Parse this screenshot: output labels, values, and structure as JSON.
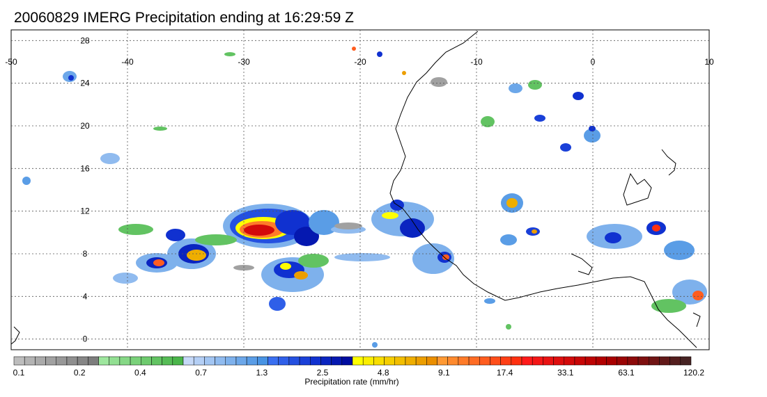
{
  "title": "20060829 IMERG Precipitation ending at 16:29:59 Z",
  "map": {
    "lon_range": [
      -50,
      10
    ],
    "lat_range": [
      -1,
      29
    ],
    "lon_labels": [
      "-50",
      "-40",
      "-30",
      "-20",
      "-10",
      "0",
      "10"
    ],
    "lat_labels": [
      "28",
      "24",
      "20",
      "16",
      "12",
      "8",
      "4",
      "0"
    ],
    "grid": true,
    "region": "Tropical Atlantic and West Africa"
  },
  "colorbar": {
    "label": "Precipitation rate (mm/hr)",
    "tick_labels": [
      "0.1",
      "0.2",
      "0.4",
      "0.7",
      "1.3",
      "2.5",
      "4.8",
      "9.1",
      "17.4",
      "33.1",
      "63.1",
      "120.2"
    ],
    "colors": [
      "#bdbdbd",
      "#b3b3b3",
      "#aaaaaa",
      "#a1a1a1",
      "#989898",
      "#8f8f8f",
      "#868686",
      "#7d7d7d",
      "#9ee69e",
      "#92df92",
      "#86d886",
      "#7ad17a",
      "#6eca6e",
      "#62c362",
      "#56bc56",
      "#4ab54a",
      "#c6d9f8",
      "#b4cff5",
      "#a2c5f2",
      "#90bbef",
      "#7eb1ec",
      "#6ca7e9",
      "#5a9de6",
      "#4893e3",
      "#3a6ff0",
      "#2f5fe8",
      "#2450e0",
      "#1a40d8",
      "#1031d0",
      "#0a24c0",
      "#0518b0",
      "#000ca0",
      "#ffff00",
      "#fbee00",
      "#f8de00",
      "#f5ce00",
      "#f2be00",
      "#efae00",
      "#ec9e00",
      "#ea8e00",
      "#ff9933",
      "#ff8a2e",
      "#ff7b29",
      "#ff6c24",
      "#ff5d1f",
      "#ff4e1a",
      "#ff3f15",
      "#ff3010",
      "#ff1a1a",
      "#f41616",
      "#e91212",
      "#de0e0e",
      "#d30a0a",
      "#c80606",
      "#bd0303",
      "#b20000",
      "#a80000",
      "#9a0505",
      "#8c0a0a",
      "#7e0f0f",
      "#701414",
      "#621919",
      "#541e1e",
      "#462323"
    ]
  }
}
